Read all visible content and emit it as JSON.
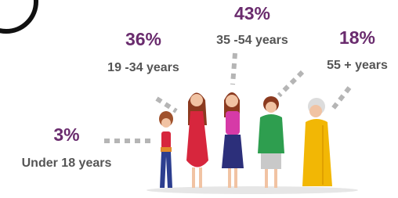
{
  "groups": [
    {
      "percent": "3%",
      "label": "Under 18 years"
    },
    {
      "percent": "36%",
      "label": "19 -34 years"
    },
    {
      "percent": "43%",
      "label": "35 -54 years"
    },
    {
      "percent": "18%",
      "label": "55 + years"
    }
  ]
}
